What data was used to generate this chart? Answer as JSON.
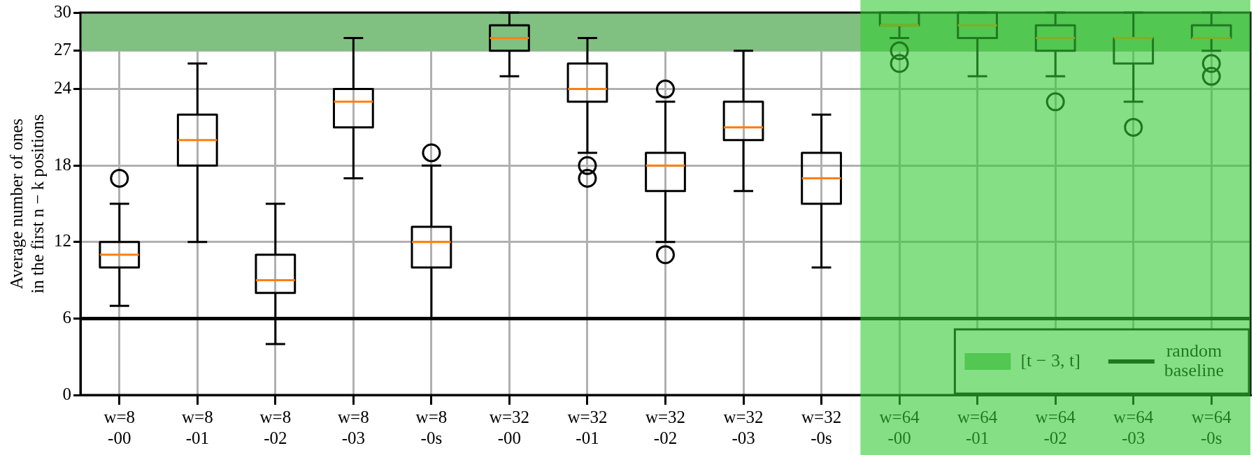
{
  "chart_data": {
    "type": "box",
    "ylabel": "Average number of ones\nin the first n − k positions",
    "categories": [
      "w=8\n-00",
      "w=8\n-01",
      "w=8\n-02",
      "w=8\n-03",
      "w=8\n-0s",
      "w=32\n-00",
      "w=32\n-01",
      "w=32\n-02",
      "w=32\n-03",
      "w=32\n-0s",
      "w=64\n-00",
      "w=64\n-01",
      "w=64\n-02",
      "w=64\n-03",
      "w=64\n-0s"
    ],
    "boxes": [
      {
        "low": 7,
        "q1": 10,
        "median": 11,
        "q3": 12,
        "high": 15,
        "outliers": [
          17
        ]
      },
      {
        "low": 12,
        "q1": 18,
        "median": 20,
        "q3": 22,
        "high": 26
      },
      {
        "low": 4,
        "q1": 8,
        "median": 9,
        "q3": 11,
        "high": 15
      },
      {
        "low": 17,
        "q1": 21,
        "median": 23,
        "q3": 24,
        "high": 28
      },
      {
        "low": 6,
        "q1": 10,
        "median": 12,
        "q3": 13.2,
        "high": 18,
        "outliers": [
          19
        ]
      },
      {
        "low": 25,
        "q1": 27,
        "median": 28,
        "q3": 29,
        "high": 30
      },
      {
        "low": 19,
        "q1": 23,
        "median": 24,
        "q3": 26,
        "high": 28,
        "outliers": [
          18,
          17
        ]
      },
      {
        "low": 12,
        "q1": 16,
        "median": 18,
        "q3": 19,
        "high": 23,
        "outliers": [
          24,
          11
        ]
      },
      {
        "low": 16,
        "q1": 20,
        "median": 21,
        "q3": 23,
        "high": 27
      },
      {
        "low": 10,
        "q1": 15,
        "median": 17,
        "q3": 19,
        "high": 22
      },
      {
        "low": 28,
        "q1": 29,
        "median": 29,
        "q3": 30,
        "high": 30,
        "outliers": [
          27,
          26
        ]
      },
      {
        "low": 25,
        "q1": 28,
        "median": 29,
        "q3": 30,
        "high": 30
      },
      {
        "low": 25,
        "q1": 27,
        "median": 28,
        "q3": 29,
        "high": 30,
        "outliers": [
          23
        ]
      },
      {
        "low": 23,
        "q1": 26,
        "median": 28,
        "q3": 28,
        "high": 30,
        "outliers": [
          21
        ]
      },
      {
        "low": 27,
        "q1": 28,
        "median": 28,
        "q3": 29,
        "high": 30,
        "outliers": [
          26,
          25
        ]
      }
    ],
    "ylim": [
      0,
      30
    ],
    "yticks": [
      0,
      6,
      12,
      18,
      24,
      27,
      30
    ],
    "grid": true,
    "legend": "bottom right",
    "ref_lines": [
      {
        "axis": "y",
        "value": 6,
        "label": "random\nbaseline",
        "color": "#000000"
      }
    ],
    "bands": [
      {
        "axis": "y",
        "from": 27,
        "to": 30,
        "label": "[t − 3, t]",
        "color": "#80c080"
      },
      {
        "axis": "x",
        "from": "w=64\n-00",
        "to": "w=64\n-0s",
        "color": "#33cc33"
      }
    ]
  }
}
